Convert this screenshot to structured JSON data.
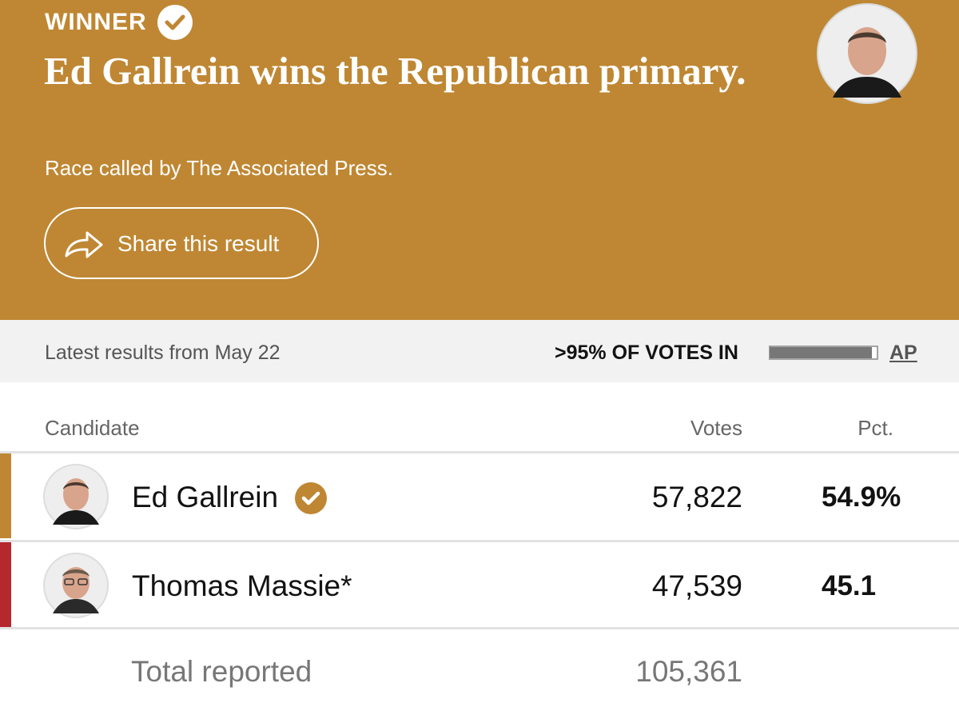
{
  "header": {
    "label": "WINNER",
    "title": "Ed Gallrein wins the Republican primary.",
    "subtitle": "Race called by The Associated Press.",
    "share": "Share this result"
  },
  "status": {
    "latest": "Latest results from May 22",
    "votes_in": ">95% OF VOTES IN",
    "source": "AP"
  },
  "table": {
    "columns": [
      "Candidate",
      "Votes",
      "Pct."
    ],
    "rows": [
      [
        "Ed Gallrein",
        "57,822",
        "54.9%"
      ],
      [
        "Thomas Massie*",
        "47,539",
        "45.1"
      ]
    ],
    "total": [
      "Total reported",
      "105,361"
    ]
  }
}
